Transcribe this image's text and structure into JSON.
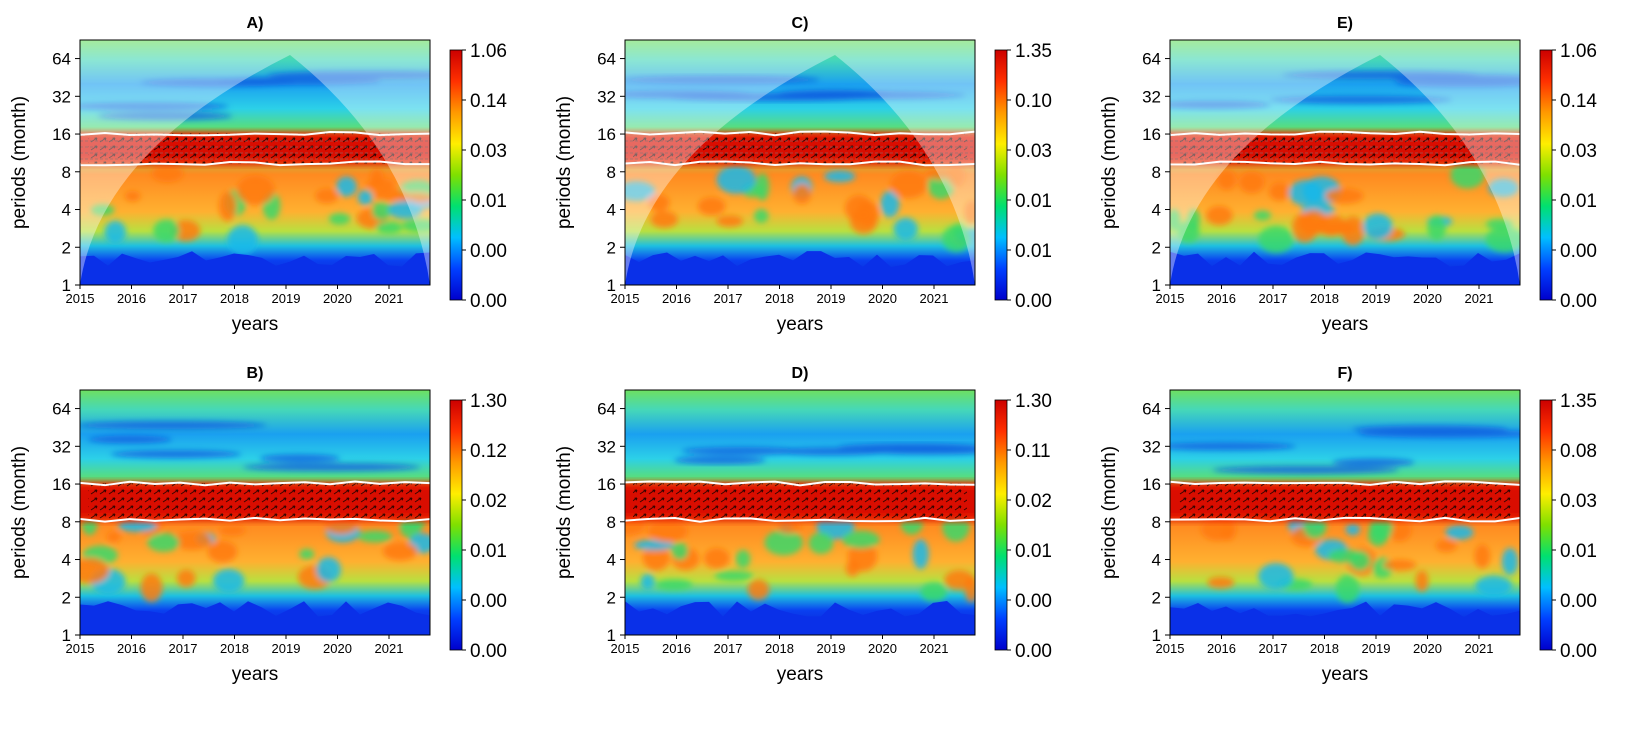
{
  "chart_data": [
    {
      "type": "heatmap",
      "id": "A",
      "title": "A)",
      "xlabel": "years",
      "ylabel": "periods (month)",
      "x_ticks": [
        "2015",
        "2016",
        "2017",
        "2018",
        "2019",
        "2020",
        "2021"
      ],
      "y_ticks": [
        "1",
        "2",
        "4",
        "8",
        "16",
        "32",
        "64"
      ],
      "colorbar_labels": [
        "1.06",
        "0.14",
        "0.03",
        "0.01",
        "0.00",
        "0.00"
      ],
      "cone_of_influence": true,
      "significant_band": [
        9,
        16
      ]
    },
    {
      "type": "heatmap",
      "id": "C",
      "title": "C)",
      "xlabel": "years",
      "ylabel": "periods (month)",
      "x_ticks": [
        "2015",
        "2016",
        "2017",
        "2018",
        "2019",
        "2020",
        "2021"
      ],
      "y_ticks": [
        "1",
        "2",
        "4",
        "8",
        "16",
        "32",
        "64"
      ],
      "colorbar_labels": [
        "1.35",
        "0.10",
        "0.03",
        "0.01",
        "0.01",
        "0.00"
      ],
      "cone_of_influence": true,
      "significant_band": [
        9,
        16
      ]
    },
    {
      "type": "heatmap",
      "id": "E",
      "title": "E)",
      "xlabel": "years",
      "ylabel": "periods (month)",
      "x_ticks": [
        "2015",
        "2016",
        "2017",
        "2018",
        "2019",
        "2020",
        "2021"
      ],
      "y_ticks": [
        "1",
        "2",
        "4",
        "8",
        "16",
        "32",
        "64"
      ],
      "colorbar_labels": [
        "1.06",
        "0.14",
        "0.03",
        "0.01",
        "0.00",
        "0.00"
      ],
      "cone_of_influence": true,
      "significant_band": [
        9,
        16
      ]
    },
    {
      "type": "heatmap",
      "id": "B",
      "title": "B)",
      "xlabel": "years",
      "ylabel": "periods (month)",
      "x_ticks": [
        "2015",
        "2016",
        "2017",
        "2018",
        "2019",
        "2020",
        "2021"
      ],
      "y_ticks": [
        "1",
        "2",
        "4",
        "8",
        "16",
        "32",
        "64"
      ],
      "colorbar_labels": [
        "1.30",
        "0.12",
        "0.02",
        "0.01",
        "0.00",
        "0.00"
      ],
      "cone_of_influence": false,
      "significant_band": [
        8,
        16
      ]
    },
    {
      "type": "heatmap",
      "id": "D",
      "title": "D)",
      "xlabel": "years",
      "ylabel": "periods (month)",
      "x_ticks": [
        "2015",
        "2016",
        "2017",
        "2018",
        "2019",
        "2020",
        "2021"
      ],
      "y_ticks": [
        "1",
        "2",
        "4",
        "8",
        "16",
        "32",
        "64"
      ],
      "colorbar_labels": [
        "1.30",
        "0.11",
        "0.02",
        "0.01",
        "0.00",
        "0.00"
      ],
      "cone_of_influence": false,
      "significant_band": [
        8,
        16
      ]
    },
    {
      "type": "heatmap",
      "id": "F",
      "title": "F)",
      "xlabel": "years",
      "ylabel": "periods (month)",
      "x_ticks": [
        "2015",
        "2016",
        "2017",
        "2018",
        "2019",
        "2020",
        "2021"
      ],
      "y_ticks": [
        "1",
        "2",
        "4",
        "8",
        "16",
        "32",
        "64"
      ],
      "colorbar_labels": [
        "1.35",
        "0.08",
        "0.03",
        "0.01",
        "0.00",
        "0.00"
      ],
      "cone_of_influence": false,
      "significant_band": [
        8,
        16
      ]
    }
  ],
  "colors": {
    "colorbar": [
      "#0000cc",
      "#0040ff",
      "#00bfff",
      "#00e070",
      "#7fe000",
      "#ffee00",
      "#ff9900",
      "#ff3000",
      "#cc0000"
    ],
    "heat_band": "#ee2200",
    "mid_field": "#ff9a2a",
    "low_field": "#0a2fe0",
    "high_field": "#3cc8e8",
    "coi_outside": "#ffffff",
    "contour": "#ffffff",
    "arrow": "#000000"
  }
}
